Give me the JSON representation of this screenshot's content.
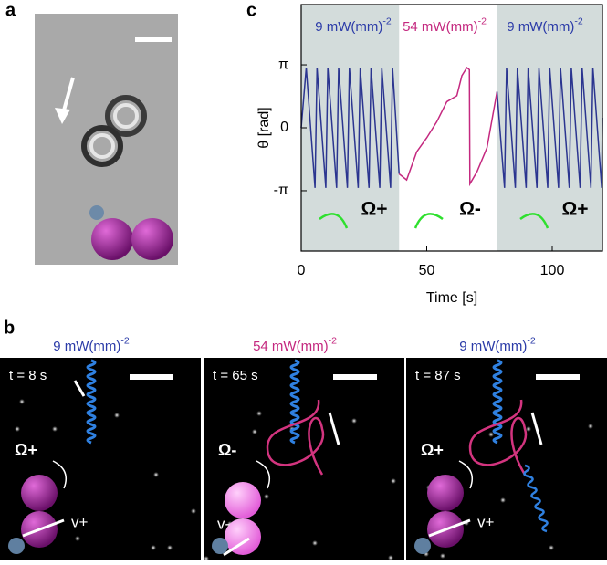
{
  "panels": {
    "a": {
      "label": "a"
    },
    "b": {
      "label": "b",
      "frames": [
        {
          "intensity": {
            "text": "9 mW(mm)",
            "sup": "-2",
            "color": "#2b3ba8"
          },
          "time": "t = 8 s",
          "rotation": "Ω+",
          "velocity": "v+"
        },
        {
          "intensity": {
            "text": "54 mW(mm)",
            "sup": "-2",
            "color": "#c4287f"
          },
          "time": "t = 65 s",
          "rotation": "Ω-",
          "velocity": "v-"
        },
        {
          "intensity": {
            "text": "9 mW(mm)",
            "sup": "-2",
            "color": "#2b3ba8"
          },
          "time": "t = 87 s",
          "rotation": "Ω+",
          "velocity": "v+"
        }
      ]
    },
    "c": {
      "label": "c"
    }
  },
  "chart_data": {
    "type": "line",
    "xlabel": "Time [s]",
    "ylabel": "θ [rad]",
    "xlim": [
      0,
      120
    ],
    "ylim": [
      -6.15,
      6.15
    ],
    "xticks": [
      0,
      50,
      100
    ],
    "yticks": [
      {
        "value": -3.1416,
        "label": "-π"
      },
      0,
      {
        "value": 3.1416,
        "label": "π"
      }
    ],
    "shaded_spans": [
      [
        0,
        39
      ],
      [
        78,
        120
      ]
    ],
    "shade_color": "#d3dcdb",
    "annotations": [
      {
        "text": "9 mW(mm)",
        "sup": "-2",
        "color": "#2b3ba8"
      },
      {
        "text": "54 mW(mm)",
        "sup": "-2",
        "color": "#c4287f"
      },
      {
        "text": "9 mW(mm)",
        "sup": "-2",
        "color": "#2b3ba8"
      }
    ],
    "rotation_labels": [
      "Ω+",
      "Ω-",
      "Ω+"
    ],
    "series": [
      {
        "color": "#2b3590",
        "x": [
          0,
          2,
          5.5,
          6.3,
          9.8,
          10.6,
          14.1,
          14.9,
          18.4,
          19.2,
          22.7,
          23.5,
          27,
          27.8,
          31.3,
          32.1,
          35.6,
          36.4,
          39
        ],
        "values": [
          0,
          3.0,
          -3.0,
          3.0,
          -3.0,
          3.0,
          -3.0,
          3.0,
          -3.0,
          3.0,
          -3.0,
          3.0,
          -3.0,
          3.0,
          -3.0,
          3.0,
          -3.0,
          3.0,
          -2.3
        ]
      },
      {
        "color": "#c4287f",
        "x": [
          39,
          42,
          46,
          50,
          54,
          58,
          62,
          64,
          66,
          67,
          67.2,
          70,
          74,
          78
        ],
        "values": [
          -2.3,
          -2.6,
          -1.2,
          -0.5,
          0.3,
          1.3,
          1.6,
          2.6,
          3.0,
          2.9,
          -2.8,
          -2.2,
          -1.0,
          1.8
        ]
      },
      {
        "color": "#2b3590",
        "x": [
          78,
          81,
          81.8,
          85.3,
          86.1,
          89.6,
          90.4,
          93.9,
          94.7,
          98.2,
          99,
          102.5,
          103.3,
          106.8,
          107.6,
          111.1,
          111.9,
          115.4,
          116.2,
          119.7,
          120
        ],
        "values": [
          1.8,
          -3.0,
          3.0,
          -3.0,
          3.0,
          -3.0,
          3.0,
          -3.0,
          3.0,
          -3.0,
          3.0,
          -3.0,
          3.0,
          -3.0,
          3.0,
          -3.0,
          3.0,
          -3.0,
          3.0,
          -3.0,
          0.5
        ]
      }
    ]
  }
}
